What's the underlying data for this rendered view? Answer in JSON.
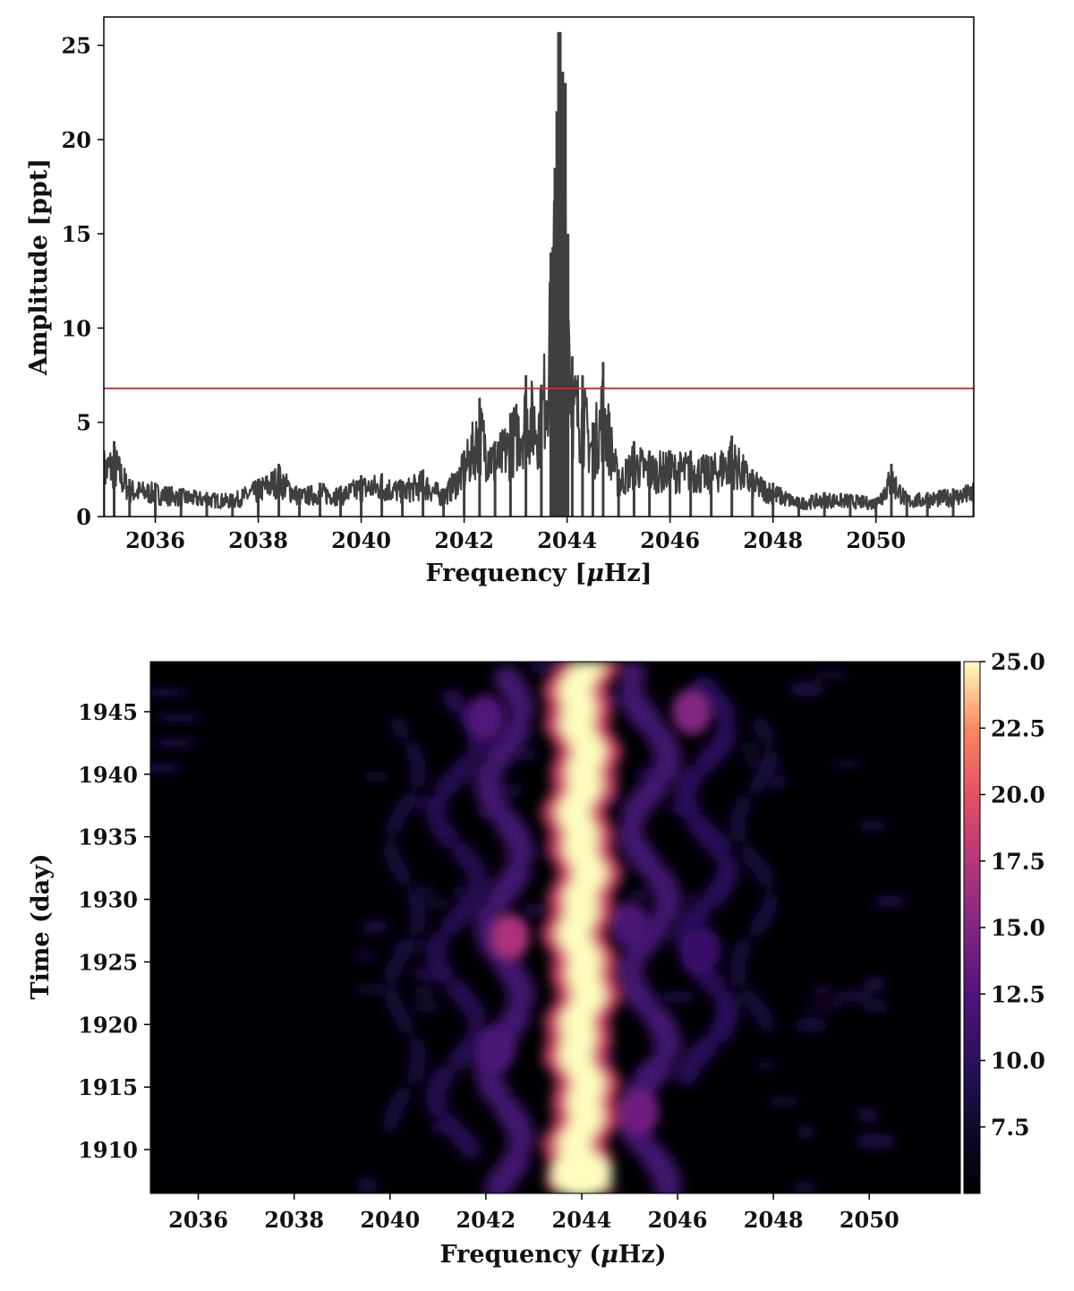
{
  "chart_data": [
    {
      "type": "line",
      "xlabel": "Frequency [$\\mu$Hz]",
      "xlabel_parts": [
        "Frequency [",
        "μ",
        "Hz]"
      ],
      "ylabel": "Amplitude [ppt]",
      "xlim": [
        2035.0,
        2051.9
      ],
      "ylim": [
        0,
        26.5
      ],
      "xticks": [
        2036,
        2038,
        2040,
        2042,
        2044,
        2046,
        2048,
        2050
      ],
      "xtick_labels": [
        "2036",
        "2038",
        "2040",
        "2042",
        "2044",
        "2046",
        "2048",
        "2050"
      ],
      "yticks": [
        0,
        5,
        10,
        15,
        20,
        25
      ],
      "ytick_labels": [
        "0",
        "5",
        "10",
        "15",
        "20",
        "25"
      ],
      "threshold": 6.8,
      "threshold_color": "#d62728",
      "line_color": "#3f3f3f",
      "series": [
        {
          "x": [
            2035.0,
            2035.2,
            2035.5,
            2036.0,
            2036.5,
            2037.0,
            2037.5,
            2038.0,
            2038.4,
            2038.8,
            2039.2,
            2039.6,
            2040.0,
            2040.4,
            2040.8,
            2041.2,
            2041.6,
            2042.0,
            2042.3,
            2042.6,
            2042.9,
            2043.2,
            2043.5,
            2043.7,
            2043.8,
            2043.85,
            2043.95,
            2044.1,
            2044.3,
            2044.5,
            2044.7,
            2045.0,
            2045.3,
            2045.6,
            2046.0,
            2046.4,
            2046.8,
            2047.2,
            2047.6,
            2048.0,
            2048.5,
            2049.0,
            2049.5,
            2050.0,
            2050.3,
            2050.6,
            2051.0,
            2051.5,
            2051.9
          ],
          "y": [
            3.5,
            4.0,
            2.0,
            1.8,
            1.5,
            1.3,
            1.2,
            2.0,
            2.8,
            1.5,
            1.8,
            1.6,
            2.2,
            2.3,
            1.9,
            2.5,
            1.5,
            3.5,
            6.3,
            4.0,
            5.5,
            7.5,
            7.0,
            14.0,
            21.5,
            25.7,
            23.0,
            8.5,
            7.5,
            5.0,
            8.2,
            2.5,
            4.0,
            3.5,
            3.5,
            3.5,
            3.2,
            4.3,
            2.5,
            1.8,
            1.0,
            1.3,
            1.2,
            1.0,
            2.8,
            1.2,
            1.3,
            1.5,
            1.8
          ]
        }
      ]
    },
    {
      "type": "heatmap",
      "xlabel": "Frequency ($\\mu$Hz)",
      "xlabel_parts": [
        "Frequency (",
        "μ",
        "Hz)"
      ],
      "ylabel": "Time (day)",
      "xlim": [
        2035.0,
        2051.9
      ],
      "ylim": [
        1906.5,
        1949.0
      ],
      "xticks": [
        2036,
        2038,
        2040,
        2042,
        2044,
        2046,
        2048,
        2050
      ],
      "xtick_labels": [
        "2036",
        "2038",
        "2040",
        "2042",
        "2044",
        "2046",
        "2048",
        "2050"
      ],
      "yticks": [
        1910,
        1915,
        1920,
        1925,
        1930,
        1935,
        1940,
        1945
      ],
      "ytick_labels": [
        "1910",
        "1915",
        "1920",
        "1925",
        "1930",
        "1935",
        "1940",
        "1945"
      ],
      "colormap": "magma",
      "colorbar_range": [
        5.0,
        25.0
      ],
      "colorbar_ticks": [
        7.5,
        10.0,
        12.5,
        15.0,
        17.5,
        20.0,
        22.5,
        25.0
      ],
      "colorbar_tick_labels": [
        "7.5",
        "10.0",
        "12.5",
        "15.0",
        "17.5",
        "20.0",
        "22.5",
        "25.0"
      ],
      "dominant_frequency": 2044.0,
      "features": [
        {
          "freq": 2044.0,
          "time_range": [
            1906.5,
            1949.0
          ],
          "level": 25.0
        },
        {
          "freq": 2042.5,
          "time": 1927.0,
          "level": 17.0
        },
        {
          "freq": 2046.3,
          "time": 1945.0,
          "level": 15.0
        },
        {
          "freq": 2045.2,
          "time": 1913.0,
          "level": 14.0
        },
        {
          "freq": 2042.0,
          "time": 1944.5,
          "level": 12.5
        },
        {
          "freq": 2045.0,
          "time": 1928.0,
          "level": 12.0
        },
        {
          "freq": 2042.2,
          "time": 1918.0,
          "level": 12.0
        },
        {
          "freq": 2046.5,
          "time": 1926.0,
          "level": 11.0
        }
      ]
    }
  ]
}
